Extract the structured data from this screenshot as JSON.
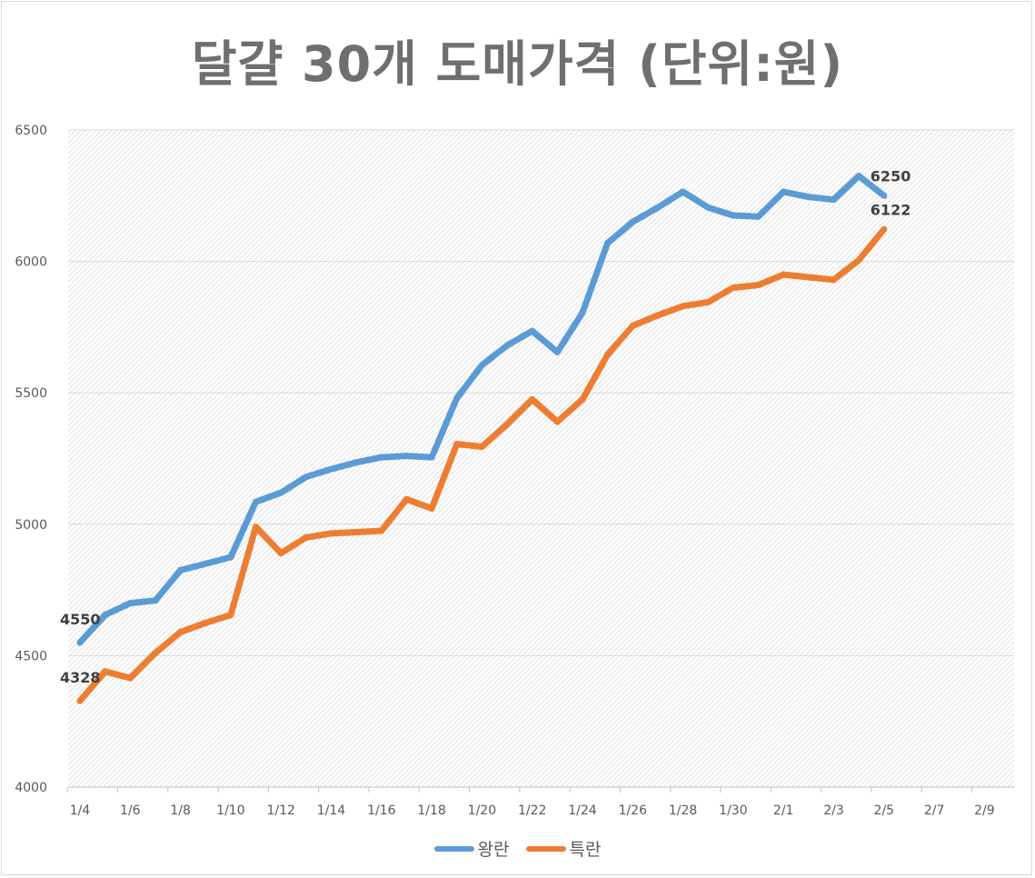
{
  "chart_data": {
    "type": "line",
    "title": "달걀 30개 도매가격 (단위:원)",
    "ylim": [
      4000,
      6500
    ],
    "yticks": [
      "4000",
      "4500",
      "5000",
      "5500",
      "6000",
      "6500"
    ],
    "xlabels": [
      "1/4",
      "1/6",
      "1/8",
      "1/10",
      "1/12",
      "1/14",
      "1/16",
      "1/18",
      "1/20",
      "1/22",
      "1/24",
      "1/26",
      "1/28",
      "1/30",
      "2/1",
      "2/3",
      "2/5",
      "2/7",
      "2/9"
    ],
    "grid": true,
    "legend": "bottom",
    "series": [
      {
        "name": "왕란",
        "color": "#5B9BD5",
        "values": [
          4550,
          4655,
          4700,
          4710,
          4825,
          4850,
          4875,
          5085,
          5120,
          5180,
          5210,
          5235,
          5255,
          5260,
          5255,
          5480,
          5605,
          5680,
          5735,
          5655,
          5805,
          6070,
          6150,
          6205,
          6265,
          6205,
          6175,
          6170,
          6265,
          6245,
          6235,
          6325,
          6250
        ],
        "end_labels": [
          "4550",
          "6250"
        ]
      },
      {
        "name": "특란",
        "color": "#ED7D31",
        "values": [
          4328,
          4440,
          4415,
          4510,
          4590,
          4625,
          4655,
          4990,
          4890,
          4950,
          4965,
          4970,
          4975,
          5095,
          5060,
          5305,
          5295,
          5380,
          5475,
          5390,
          5475,
          5645,
          5755,
          5795,
          5830,
          5845,
          5900,
          5910,
          5950,
          5940,
          5930,
          6005,
          6122
        ],
        "end_labels": [
          "4328",
          "6122"
        ]
      }
    ]
  }
}
